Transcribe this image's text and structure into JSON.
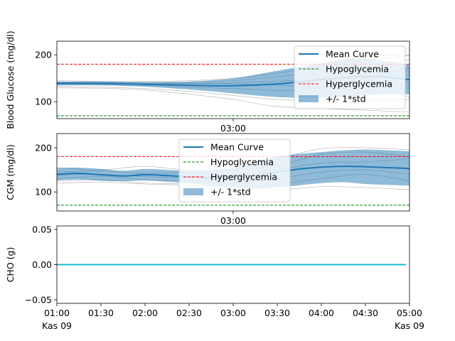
{
  "chart_data": [
    {
      "type": "line",
      "ylabel": "Blood Glucose (mg/dl)",
      "ylim": [
        64,
        229
      ],
      "yticks": [
        100,
        200
      ],
      "xlim": [
        1.0,
        5.0
      ],
      "mid_tick_label": "03:00",
      "thresholds": {
        "hypoglycemia": 70,
        "hyperglycemia": 180
      },
      "mean": {
        "x": [
          1.0,
          1.5,
          2.0,
          2.5,
          3.0,
          3.5,
          4.0,
          4.25,
          4.5,
          4.75,
          5.0
        ],
        "y": [
          139,
          139,
          137,
          135,
          134,
          138,
          147,
          151,
          154,
          152,
          147
        ]
      },
      "std_band": {
        "x": [
          1.0,
          1.5,
          2.0,
          2.5,
          3.0,
          3.5,
          4.0,
          4.25,
          4.5,
          4.75,
          5.0
        ],
        "upper": [
          143,
          143,
          142,
          143,
          150,
          166,
          182,
          190,
          192,
          186,
          178
        ],
        "lower": [
          135,
          135,
          132,
          126,
          118,
          110,
          108,
          110,
          114,
          116,
          116
        ]
      },
      "traces": [
        {
          "x": [
            1.0,
            2.0,
            3.0,
            4.0,
            4.5,
            5.0
          ],
          "y": [
            145,
            143,
            150,
            175,
            195,
            200
          ]
        },
        {
          "x": [
            1.0,
            2.0,
            3.0,
            4.0,
            4.5,
            5.0
          ],
          "y": [
            141,
            140,
            145,
            165,
            188,
            198
          ]
        },
        {
          "x": [
            1.0,
            2.0,
            3.0,
            4.0,
            4.5,
            5.0
          ],
          "y": [
            139,
            138,
            140,
            150,
            172,
            190
          ]
        },
        {
          "x": [
            1.0,
            2.0,
            3.0,
            3.75,
            4.5,
            5.0
          ],
          "y": [
            137,
            134,
            128,
            125,
            150,
            172
          ]
        },
        {
          "x": [
            1.0,
            2.0,
            2.75,
            3.5,
            4.25,
            5.0
          ],
          "y": [
            133,
            128,
            118,
            105,
            102,
            105
          ]
        },
        {
          "x": [
            1.0,
            2.0,
            3.0,
            3.5,
            4.5,
            5.0
          ],
          "y": [
            130,
            125,
            105,
            90,
            82,
            78
          ]
        },
        {
          "x": [
            1.0,
            2.0,
            3.0,
            4.0,
            4.75,
            5.0
          ],
          "y": [
            142,
            140,
            138,
            132,
            120,
            110
          ]
        }
      ],
      "legend": {
        "placement": "top-right",
        "entries": [
          "Mean Curve",
          "Hypoglycemia",
          "Hyperglycemia",
          "+/- 1*std"
        ]
      }
    },
    {
      "type": "line",
      "ylabel": "CGM (mg/dl)",
      "ylim": [
        57,
        232
      ],
      "yticks": [
        100,
        200
      ],
      "xlim": [
        1.0,
        5.0
      ],
      "mid_tick_label": "03:00",
      "thresholds": {
        "hypoglycemia": 70,
        "hyperglycemia": 180
      },
      "mean": {
        "x": [
          1.0,
          1.25,
          1.5,
          1.75,
          2.0,
          2.25,
          2.5,
          2.75,
          3.0,
          3.25,
          3.5,
          3.75,
          4.0,
          4.25,
          4.5,
          4.75,
          5.0
        ],
        "y": [
          140,
          142,
          139,
          136,
          139,
          137,
          134,
          132,
          133,
          137,
          145,
          152,
          156,
          158,
          157,
          155,
          153
        ]
      },
      "std_band": {
        "x": [
          1.0,
          1.25,
          1.5,
          1.75,
          2.0,
          2.25,
          2.5,
          2.75,
          3.0,
          3.25,
          3.5,
          3.75,
          4.0,
          4.25,
          4.5,
          4.75,
          5.0
        ],
        "upper": [
          154,
          155,
          152,
          148,
          152,
          150,
          148,
          150,
          155,
          168,
          180,
          186,
          190,
          194,
          196,
          194,
          192
        ],
        "lower": [
          126,
          128,
          125,
          124,
          126,
          123,
          120,
          114,
          111,
          108,
          110,
          115,
          120,
          122,
          118,
          116,
          114
        ]
      },
      "traces": [
        {
          "x": [
            1.0,
            1.5,
            2.0,
            2.5,
            3.0,
            3.5,
            4.0,
            4.5,
            5.0
          ],
          "y": [
            155,
            150,
            158,
            150,
            160,
            175,
            198,
            200,
            195
          ]
        },
        {
          "x": [
            1.0,
            1.5,
            2.0,
            2.5,
            3.0,
            3.5,
            4.0,
            4.5,
            5.0
          ],
          "y": [
            145,
            148,
            142,
            145,
            150,
            160,
            185,
            190,
            180
          ]
        },
        {
          "x": [
            1.0,
            1.5,
            2.0,
            2.5,
            3.0,
            3.5,
            4.0,
            4.5,
            5.0
          ],
          "y": [
            138,
            140,
            135,
            132,
            135,
            150,
            165,
            168,
            175
          ]
        },
        {
          "x": [
            1.0,
            1.5,
            2.0,
            2.5,
            3.0,
            3.5,
            4.0,
            4.5,
            5.0
          ],
          "y": [
            130,
            135,
            128,
            125,
            120,
            130,
            145,
            150,
            140
          ]
        },
        {
          "x": [
            1.0,
            1.5,
            2.0,
            2.5,
            3.0,
            3.5,
            4.0,
            4.5,
            5.0
          ],
          "y": [
            125,
            128,
            120,
            118,
            112,
            118,
            130,
            140,
            125
          ]
        },
        {
          "x": [
            1.0,
            1.5,
            2.0,
            2.5,
            3.0,
            3.5,
            4.0,
            4.5,
            5.0
          ],
          "y": [
            120,
            122,
            118,
            115,
            108,
            105,
            112,
            110,
            105
          ]
        }
      ],
      "legend": {
        "placement": "top-center",
        "entries": [
          "Mean Curve",
          "Hypoglycemia",
          "Hyperglycemia",
          "+/- 1*std"
        ]
      }
    },
    {
      "type": "line",
      "ylabel": "CHO (g)",
      "ylim": [
        -0.055,
        0.055
      ],
      "yticks": [
        -0.05,
        0.0,
        0.05
      ],
      "ytick_labels": [
        "−0.05",
        "0.00",
        "0.05"
      ],
      "xlim": [
        1.0,
        5.0
      ],
      "xticks": [
        1.0,
        1.5,
        2.0,
        2.5,
        3.0,
        3.5,
        4.0,
        4.5,
        5.0
      ],
      "xtick_labels": [
        "01:00",
        "01:30",
        "02:00",
        "02:30",
        "03:00",
        "03:30",
        "04:00",
        "04:30",
        "05:00"
      ],
      "date_labels": {
        "left": "Kas 09",
        "right": "Kas 09"
      },
      "series": [
        {
          "x": [
            1.0,
            5.0
          ],
          "y": [
            0,
            0
          ]
        }
      ]
    }
  ],
  "colors": {
    "mean": "#1f77b4",
    "band": "#1f77b4",
    "hypo": "#008000",
    "hyper": "#ff0000",
    "trace": "#999999",
    "cho": "#17becf"
  }
}
